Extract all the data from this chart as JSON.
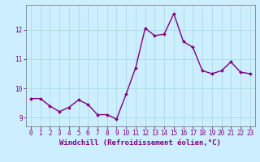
{
  "x": [
    0,
    1,
    2,
    3,
    4,
    5,
    6,
    7,
    8,
    9,
    10,
    11,
    12,
    13,
    14,
    15,
    16,
    17,
    18,
    19,
    20,
    21,
    22,
    23
  ],
  "y": [
    9.65,
    9.65,
    9.4,
    9.2,
    9.35,
    9.6,
    9.45,
    9.1,
    9.1,
    8.95,
    9.8,
    10.7,
    12.05,
    11.8,
    11.85,
    12.55,
    11.6,
    11.4,
    10.6,
    10.5,
    10.6,
    10.9,
    10.55,
    10.5
  ],
  "line_color": "#800080",
  "marker": "D",
  "marker_size": 2.0,
  "linewidth": 1.0,
  "bg_color": "#cceeff",
  "grid_color": "#aadddd",
  "xlabel": "Windchill (Refroidissement éolien,°C)",
  "ylabel": "",
  "xlim": [
    -0.5,
    23.5
  ],
  "ylim": [
    8.7,
    12.85
  ],
  "yticks": [
    9,
    10,
    11,
    12
  ],
  "xtick_labels": [
    "0",
    "1",
    "2",
    "3",
    "4",
    "5",
    "6",
    "7",
    "8",
    "9",
    "10",
    "11",
    "12",
    "13",
    "14",
    "15",
    "16",
    "17",
    "18",
    "19",
    "20",
    "21",
    "22",
    "23"
  ],
  "tick_color": "#800080",
  "label_color": "#800080",
  "spine_color": "#808080",
  "font_size_xlabel": 6.5,
  "font_size_ticks": 5.5
}
